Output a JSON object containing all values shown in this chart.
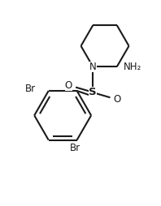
{
  "bg_color": "#ffffff",
  "line_color": "#1a1a1a",
  "line_width": 1.5,
  "font_size": 8.5,
  "figsize": [
    1.98,
    2.54
  ],
  "dpi": 100,
  "xlim": [
    0,
    9
  ],
  "ylim": [
    0,
    11.5
  ]
}
